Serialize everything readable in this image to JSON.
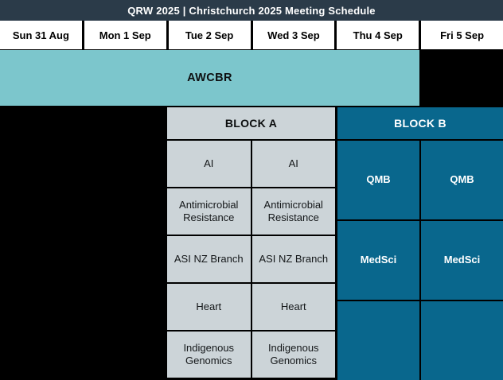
{
  "title_bar": {
    "text": "QRW 2025 | Christchurch 2025 Meeting Schedule"
  },
  "day_headers": [
    "Sun 31 Aug",
    "Mon 1 Sep",
    "Tue 2 Sep",
    "Wed 3 Sep",
    "Thu 4 Sep",
    "Fri 5 Sep"
  ],
  "awcbr_band": {
    "label": "AWCBR"
  },
  "block_a": {
    "header": "BLOCK A",
    "rows": [
      [
        "AI",
        "AI"
      ],
      [
        "Antimicrobial Resistance",
        "Antimicrobial Resistance"
      ],
      [
        "ASI NZ Branch",
        "ASI NZ Branch"
      ],
      [
        "Heart",
        "Heart"
      ],
      [
        "Indigenous Genomics",
        "Indigenous Genomics"
      ]
    ]
  },
  "block_b": {
    "header": "BLOCK B",
    "rows": [
      [
        "QMB",
        "QMB"
      ],
      [
        "MedSci",
        "MedSci"
      ],
      [
        "",
        ""
      ]
    ]
  },
  "colors": {
    "title_bar_bg": "#2b3b49",
    "day_header_bg": "#ffffff",
    "day_header_text": "#000000",
    "awcbr_teal": "#7cc6cc",
    "block_a_gray": "#ccd4d8",
    "block_b_blue": "#09678d",
    "grid_background_black": "#000000",
    "cell_text_dark": "#141719",
    "cell_text_light": "#ffffff"
  }
}
